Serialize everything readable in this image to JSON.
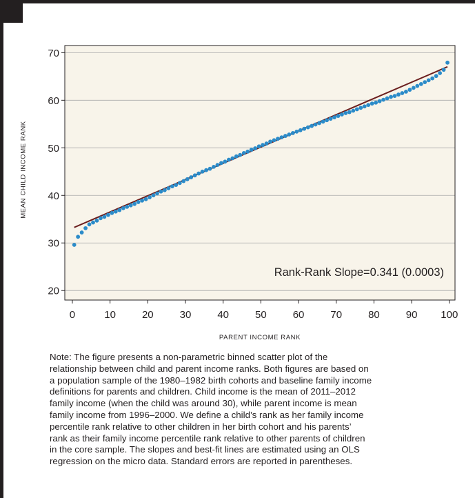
{
  "colors": {
    "plot_background": "#f8f4ea",
    "points": "#2b8bc9",
    "fit_line": "#6b1f1f",
    "gridline": "#a9a9a9",
    "ink": "#231f20"
  },
  "chart_data": {
    "type": "scatter",
    "title": "",
    "xlabel": "PARENT INCOME RANK",
    "ylabel": "MEAN CHILD INCOME RANK",
    "xlim": [
      -2,
      101.5
    ],
    "ylim": [
      18,
      71.5
    ],
    "x_ticks": [
      0,
      10,
      20,
      30,
      40,
      50,
      60,
      70,
      80,
      90,
      100
    ],
    "y_ticks": [
      20,
      30,
      40,
      50,
      60,
      70
    ],
    "grid": "horizontal",
    "annotation": "Rank-Rank Slope=0.341 (0.0003)",
    "fit_line": {
      "intercept": 33.1,
      "slope": 0.341,
      "x_range": [
        0.5,
        99.5
      ]
    },
    "series": [
      {
        "x": [
          0.5,
          1.5,
          2.5,
          3.5,
          4.5,
          5.5,
          6.5,
          7.5,
          8.5,
          9.5,
          10.5,
          11.5,
          12.5,
          13.5,
          14.5,
          15.5,
          16.5,
          17.5,
          18.5,
          19.5,
          20.5,
          21.5,
          22.5,
          23.5,
          24.5,
          25.5,
          26.5,
          27.5,
          28.5,
          29.5,
          30.5,
          31.5,
          32.5,
          33.5,
          34.5,
          35.5,
          36.5,
          37.5,
          38.5,
          39.5,
          40.5,
          41.5,
          42.5,
          43.5,
          44.5,
          45.5,
          46.5,
          47.5,
          48.5,
          49.5,
          50.5,
          51.5,
          52.5,
          53.5,
          54.5,
          55.5,
          56.5,
          57.5,
          58.5,
          59.5,
          60.5,
          61.5,
          62.5,
          63.5,
          64.5,
          65.5,
          66.5,
          67.5,
          68.5,
          69.5,
          70.5,
          71.5,
          72.5,
          73.5,
          74.5,
          75.5,
          76.5,
          77.5,
          78.5,
          79.5,
          80.5,
          81.5,
          82.5,
          83.5,
          84.5,
          85.5,
          86.5,
          87.5,
          88.5,
          89.5,
          90.5,
          91.5,
          92.5,
          93.5,
          94.5,
          95.5,
          96.5,
          97.5,
          98.5,
          99.5
        ],
        "y": [
          29.6,
          31.3,
          32.2,
          33.1,
          33.9,
          34.3,
          34.7,
          35.2,
          35.5,
          35.9,
          36.3,
          36.6,
          36.9,
          37.3,
          37.6,
          37.9,
          38.2,
          38.6,
          38.9,
          39.2,
          39.6,
          40.0,
          40.4,
          40.8,
          41.1,
          41.5,
          41.9,
          42.2,
          42.6,
          43.0,
          43.4,
          43.8,
          44.2,
          44.6,
          45.0,
          45.3,
          45.6,
          46.0,
          46.4,
          46.8,
          47.1,
          47.5,
          47.8,
          48.2,
          48.5,
          48.9,
          49.2,
          49.6,
          49.9,
          50.3,
          50.6,
          50.9,
          51.3,
          51.6,
          51.9,
          52.2,
          52.5,
          52.8,
          53.1,
          53.4,
          53.7,
          54.0,
          54.3,
          54.6,
          54.9,
          55.2,
          55.5,
          55.8,
          56.1,
          56.4,
          56.7,
          57.0,
          57.3,
          57.5,
          57.8,
          58.1,
          58.4,
          58.7,
          59.0,
          59.3,
          59.5,
          59.8,
          60.1,
          60.4,
          60.7,
          60.9,
          61.2,
          61.5,
          61.8,
          62.2,
          62.6,
          63.0,
          63.4,
          63.8,
          64.2,
          64.6,
          65.1,
          65.7,
          66.4,
          67.9
        ]
      }
    ]
  },
  "note_lines": [
    "Note: The figure presents a non-parametric binned scatter plot of the",
    "relationship between child and parent income ranks. Both figures are based on",
    "a population sample of the 1980–1982 birth cohorts and baseline family income",
    "definitions for parents and children. Child income is the mean of 2011–2012",
    "family income (when the child was around 30), while parent income is mean",
    "family income from 1996–2000. We define a child’s rank as her family income",
    "percentile rank relative to other children in her birth cohort and his parents’",
    "rank as their family income percentile rank relative to other parents of children",
    "in the core sample. The slopes and best-fit lines are estimated using an OLS",
    "regression on the micro data. Standard errors are reported in parentheses."
  ]
}
